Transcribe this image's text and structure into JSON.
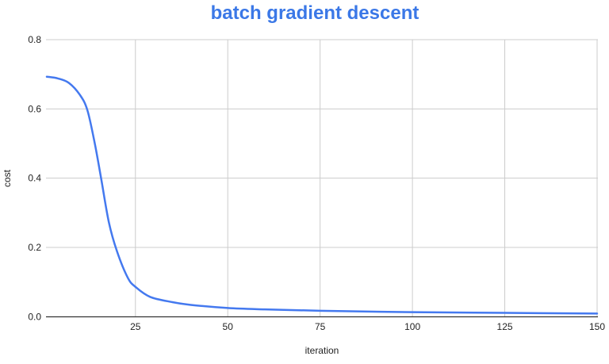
{
  "chart_data": {
    "type": "line",
    "title": "batch gradient descent",
    "xlabel": "iteration",
    "ylabel": "cost",
    "xlim": [
      1,
      150
    ],
    "ylim": [
      0,
      0.8
    ],
    "xticks": [
      25,
      50,
      75,
      100,
      125,
      150
    ],
    "yticks": [
      0.0,
      0.2,
      0.4,
      0.6,
      0.8
    ],
    "ytick_labels": [
      "0.0",
      "0.2",
      "0.4",
      "0.6",
      "0.8"
    ],
    "grid": true,
    "legend": "none",
    "colors": {
      "title": "#3b78e7",
      "line": "#4479ef",
      "grid": "#cccccc",
      "axis": "#333333"
    },
    "series": [
      {
        "x": [
          1,
          4,
          7,
          10,
          12,
          14,
          15.7,
          17.8,
          20,
          22.9,
          25,
          29,
          35,
          40,
          50,
          60,
          75,
          100,
          125,
          150
        ],
        "y": [
          0.693,
          0.688,
          0.675,
          0.64,
          0.596,
          0.5,
          0.4,
          0.273,
          0.189,
          0.113,
          0.086,
          0.057,
          0.042,
          0.034,
          0.025,
          0.021,
          0.017,
          0.013,
          0.011,
          0.009
        ]
      }
    ]
  }
}
